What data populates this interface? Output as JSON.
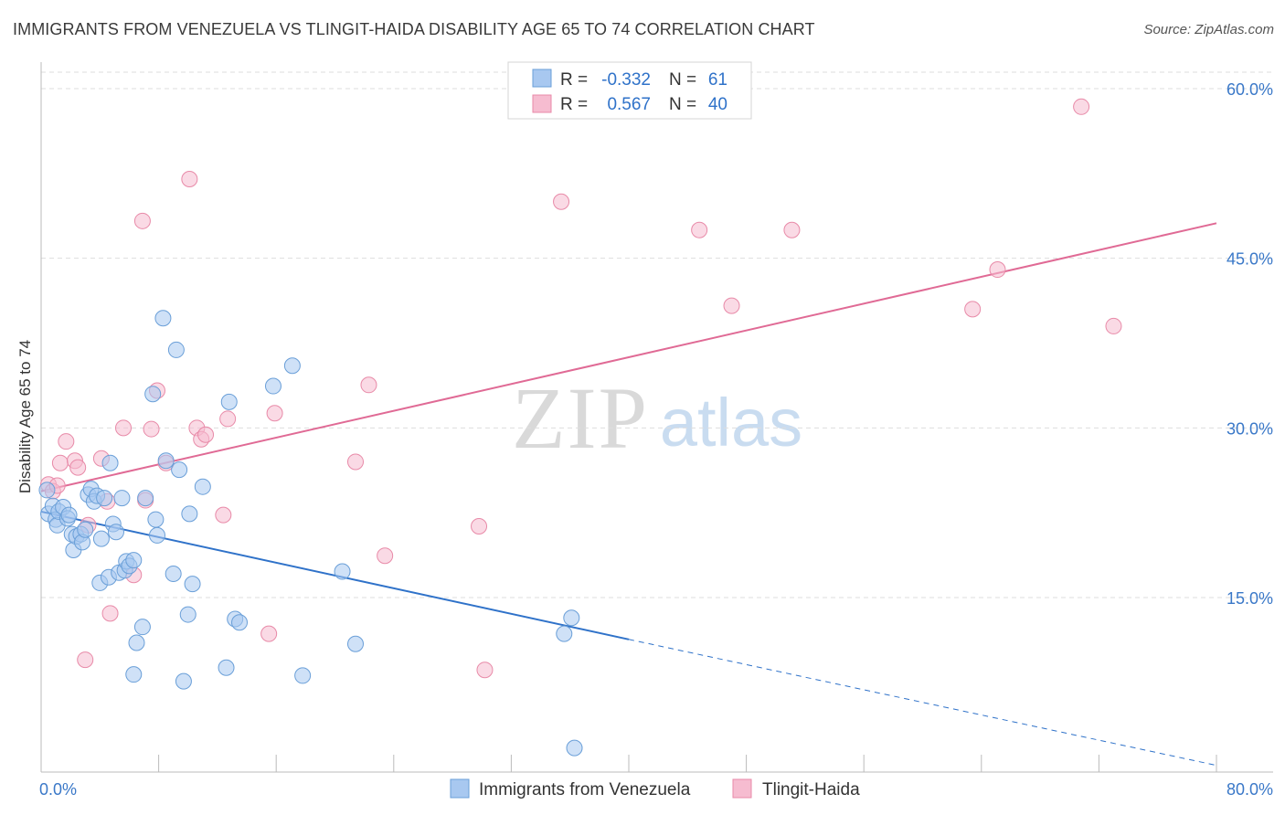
{
  "title": "IMMIGRANTS FROM VENEZUELA VS TLINGIT-HAIDA DISABILITY AGE 65 TO 74 CORRELATION CHART",
  "source": "Source: ZipAtlas.com",
  "watermark": {
    "zip": "ZIP",
    "atlas": "atlas"
  },
  "colors": {
    "blue_fill": "#a8c8f0",
    "blue_stroke": "#6a9fd8",
    "blue_line": "#2f72c9",
    "pink_fill": "#f6bcd0",
    "pink_stroke": "#e88aa8",
    "pink_line": "#e06a95",
    "tick_label": "#3a78c8",
    "grid": "#dddddd"
  },
  "legend": {
    "rows": [
      {
        "r_label": "R =",
        "r_value": "-0.332",
        "n_label": "N =",
        "n_value": "61"
      },
      {
        "r_label": "R =",
        "r_value": "0.567",
        "n_label": "N =",
        "n_value": "40"
      }
    ]
  },
  "chart_data": {
    "type": "scatter",
    "title": "IMMIGRANTS FROM VENEZUELA VS TLINGIT-HAIDA DISABILITY AGE 65 TO 74 CORRELATION CHART",
    "xlabel": "",
    "ylabel": "Disability Age 65 to 74",
    "xlim": [
      0,
      80
    ],
    "ylim": [
      0,
      62
    ],
    "x_tick_labels": [
      "0.0%",
      "80.0%"
    ],
    "y_ticks": [
      15,
      30,
      45,
      60
    ],
    "y_tick_labels": [
      "15.0%",
      "30.0%",
      "45.0%",
      "60.0%"
    ],
    "grid": true,
    "legend_position": "top-center",
    "series": [
      {
        "name": "Immigrants from Venezuela",
        "color": "#a8c8f0",
        "trend": {
          "x": [
            0,
            40
          ],
          "y": [
            22.6,
            11.3
          ],
          "dashed_to": [
            80,
            0
          ]
        },
        "points": [
          [
            0.4,
            24.5
          ],
          [
            0.5,
            22.4
          ],
          [
            0.8,
            23.1
          ],
          [
            1.0,
            21.9
          ],
          [
            1.1,
            21.4
          ],
          [
            1.2,
            22.6
          ],
          [
            1.5,
            23.0
          ],
          [
            1.8,
            22.0
          ],
          [
            1.9,
            22.3
          ],
          [
            2.1,
            20.6
          ],
          [
            2.2,
            19.2
          ],
          [
            2.4,
            20.4
          ],
          [
            2.7,
            20.6
          ],
          [
            2.8,
            19.9
          ],
          [
            3.0,
            21.0
          ],
          [
            3.2,
            24.1
          ],
          [
            3.4,
            24.6
          ],
          [
            3.6,
            23.5
          ],
          [
            3.8,
            24.0
          ],
          [
            4.0,
            16.3
          ],
          [
            4.1,
            20.2
          ],
          [
            4.3,
            23.8
          ],
          [
            4.6,
            16.8
          ],
          [
            4.7,
            26.9
          ],
          [
            4.9,
            21.5
          ],
          [
            5.1,
            20.8
          ],
          [
            5.3,
            17.2
          ],
          [
            5.5,
            23.8
          ],
          [
            5.7,
            17.4
          ],
          [
            5.8,
            18.2
          ],
          [
            6.0,
            17.8
          ],
          [
            6.3,
            18.3
          ],
          [
            6.5,
            11.0
          ],
          [
            6.9,
            12.4
          ],
          [
            7.1,
            23.8
          ],
          [
            7.6,
            33.0
          ],
          [
            7.8,
            21.9
          ],
          [
            7.9,
            20.5
          ],
          [
            8.3,
            39.7
          ],
          [
            8.5,
            27.1
          ],
          [
            9.0,
            17.1
          ],
          [
            9.2,
            36.9
          ],
          [
            9.4,
            26.3
          ],
          [
            9.7,
            7.6
          ],
          [
            10.0,
            13.5
          ],
          [
            10.1,
            22.4
          ],
          [
            10.3,
            16.2
          ],
          [
            11.0,
            24.8
          ],
          [
            12.6,
            8.8
          ],
          [
            12.8,
            32.3
          ],
          [
            13.2,
            13.1
          ],
          [
            13.5,
            12.8
          ],
          [
            15.8,
            33.7
          ],
          [
            17.1,
            35.5
          ],
          [
            17.8,
            8.1
          ],
          [
            20.5,
            17.3
          ],
          [
            21.4,
            10.9
          ],
          [
            35.6,
            11.8
          ],
          [
            36.1,
            13.2
          ],
          [
            36.3,
            1.7
          ],
          [
            6.3,
            8.2
          ]
        ]
      },
      {
        "name": "Tlingit-Haida",
        "color": "#f6bcd0",
        "trend": {
          "x": [
            0,
            80
          ],
          "y": [
            24.4,
            48.1
          ]
        },
        "points": [
          [
            0.5,
            25.0
          ],
          [
            0.8,
            24.4
          ],
          [
            1.1,
            24.9
          ],
          [
            1.3,
            26.9
          ],
          [
            1.7,
            28.8
          ],
          [
            2.3,
            27.1
          ],
          [
            2.5,
            26.5
          ],
          [
            3.0,
            9.5
          ],
          [
            3.2,
            21.4
          ],
          [
            4.1,
            27.3
          ],
          [
            4.5,
            23.5
          ],
          [
            4.7,
            13.6
          ],
          [
            5.6,
            30.0
          ],
          [
            6.3,
            17.0
          ],
          [
            6.9,
            48.3
          ],
          [
            7.1,
            23.6
          ],
          [
            7.5,
            29.9
          ],
          [
            7.9,
            33.3
          ],
          [
            8.5,
            26.9
          ],
          [
            10.1,
            52.0
          ],
          [
            10.6,
            30.0
          ],
          [
            10.9,
            29.0
          ],
          [
            11.2,
            29.4
          ],
          [
            12.4,
            22.3
          ],
          [
            12.7,
            30.8
          ],
          [
            15.5,
            11.8
          ],
          [
            15.9,
            31.3
          ],
          [
            21.4,
            27.0
          ],
          [
            22.3,
            33.8
          ],
          [
            23.4,
            18.7
          ],
          [
            29.8,
            21.3
          ],
          [
            30.2,
            8.6
          ],
          [
            35.4,
            50.0
          ],
          [
            44.8,
            47.5
          ],
          [
            47.0,
            40.8
          ],
          [
            51.1,
            47.5
          ],
          [
            63.4,
            40.5
          ],
          [
            65.1,
            44.0
          ],
          [
            70.8,
            58.4
          ],
          [
            73.0,
            39.0
          ]
        ]
      }
    ]
  }
}
